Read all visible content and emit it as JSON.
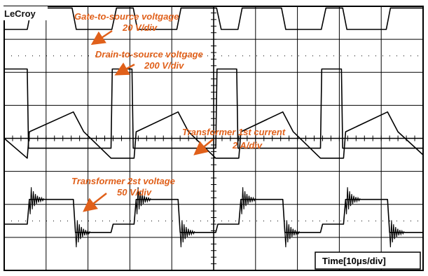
{
  "brand": "LeCroy",
  "timebase": "Time[10μs/div]",
  "colors": {
    "trace": "#000000",
    "grid": "#000000",
    "annotation": "#e0601a",
    "background": "#ffffff"
  },
  "annotations": {
    "gate_title": "Gate-to-source voltgage",
    "gate_scale": "20 V/div",
    "drain_title": "Drain-to-source voltgage",
    "drain_scale": "200 V/div",
    "current_title": "Transformer 1st current",
    "current_scale": "2 A/div",
    "voltage_title": "Transformer 2st voltage",
    "voltage_scale": "50 V/div"
  },
  "chart_data": {
    "type": "line",
    "title": "",
    "xlabel": "Time[10μs/div]",
    "grid": true,
    "x_divisions": 10,
    "y_divisions": 8,
    "switching_period_div": 2.5,
    "series": [
      {
        "name": "Gate-to-source voltgage",
        "scale": "20 V/div",
        "x_div": [
          0,
          0.55,
          0.65,
          1.62,
          1.72,
          2.57,
          2.68,
          3.08,
          3.18,
          4.12,
          4.22,
          5.07,
          5.18,
          5.58,
          5.68,
          6.62,
          6.72,
          7.57,
          7.68,
          8.08,
          8.18,
          9.12,
          9.22,
          10
        ],
        "y_div": [
          7.3,
          7.3,
          7.95,
          7.95,
          7.3,
          7.3,
          7.95,
          7.95,
          7.3,
          7.3,
          7.95,
          7.95,
          7.3,
          7.3,
          7.95,
          7.95,
          7.3,
          7.3,
          7.95,
          7.95,
          7.3,
          7.3,
          7.95,
          7.95
        ]
      },
      {
        "name": "Drain-to-source voltgage",
        "scale": "200 V/div",
        "x_div": [
          0,
          0.05,
          0.55,
          0.58,
          2.55,
          2.58,
          3.05,
          3.08,
          5.05,
          5.08,
          5.55,
          5.58,
          7.55,
          7.58,
          8.05,
          8.08,
          10
        ],
        "y_div": [
          6.1,
          6.1,
          6.1,
          3.7,
          3.7,
          6.1,
          6.1,
          3.7,
          3.7,
          6.1,
          6.1,
          3.7,
          3.7,
          6.1,
          6.1,
          3.7,
          3.7
        ]
      },
      {
        "name": "Transformer 1st current",
        "scale": "2 A/div",
        "x_div": [
          0,
          0.55,
          0.6,
          1.65,
          1.9,
          2.55,
          3.1,
          3.15,
          4.15,
          4.4,
          5.05,
          5.6,
          5.65,
          6.65,
          6.9,
          7.55,
          8.1,
          8.15,
          9.15,
          9.4,
          10
        ],
        "y_div": [
          4.0,
          3.4,
          4.2,
          4.8,
          4.2,
          3.4,
          3.4,
          4.2,
          4.8,
          4.2,
          3.4,
          3.4,
          4.2,
          4.8,
          4.2,
          3.4,
          3.4,
          4.2,
          4.8,
          4.2,
          3.5
        ]
      },
      {
        "name": "Transformer 2st voltage",
        "scale": "50 V/div",
        "x_div": [
          0,
          0.55,
          0.6,
          1.65,
          1.7,
          2.55,
          2.6,
          3.1,
          3.15,
          4.15,
          4.2,
          5.05,
          5.1,
          5.6,
          5.65,
          6.65,
          6.7,
          7.55,
          7.6,
          8.1,
          8.15,
          9.15,
          9.2,
          10
        ],
        "y_div": [
          1.4,
          1.4,
          2.15,
          2.15,
          1.15,
          1.15,
          1.4,
          1.4,
          2.15,
          2.15,
          1.15,
          1.15,
          1.4,
          1.4,
          2.15,
          2.15,
          1.15,
          1.15,
          1.4,
          1.4,
          2.15,
          2.15,
          1.15,
          1.15
        ]
      }
    ]
  }
}
